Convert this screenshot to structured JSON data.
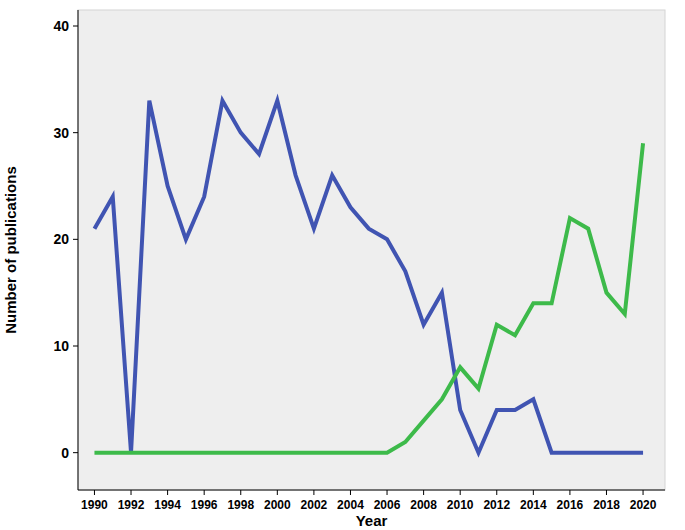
{
  "chart_data": {
    "type": "line",
    "x_label": "Year",
    "y_label": "Number of publications",
    "x": [
      1990,
      1991,
      1992,
      1993,
      1994,
      1995,
      1996,
      1997,
      1998,
      1999,
      2000,
      2001,
      2002,
      2003,
      2004,
      2005,
      2006,
      2007,
      2008,
      2009,
      2010,
      2011,
      2012,
      2013,
      2014,
      2015,
      2016,
      2017,
      2018,
      2019,
      2020
    ],
    "series": [
      {
        "color": "#4054b2",
        "values": [
          21,
          24,
          0,
          33,
          25,
          20,
          24,
          33,
          30,
          28,
          33,
          26,
          21,
          26,
          23,
          21,
          20,
          17,
          12,
          15,
          4,
          0,
          4,
          4,
          5,
          0,
          0,
          0,
          0,
          0,
          0
        ]
      },
      {
        "color": "#3dba4a",
        "values": [
          0,
          0,
          0,
          0,
          0,
          0,
          0,
          0,
          0,
          0,
          0,
          0,
          0,
          0,
          0,
          0,
          0,
          1,
          3,
          5,
          8,
          6,
          12,
          11,
          14,
          14,
          22,
          21,
          15,
          13,
          29
        ]
      }
    ],
    "xlim": [
      1989.1,
      2021.2
    ],
    "xticks": [
      1990,
      1992,
      1994,
      1996,
      1998,
      2000,
      2002,
      2004,
      2006,
      2008,
      2010,
      2012,
      2014,
      2016,
      2018,
      2020
    ],
    "ylim": [
      -3.5,
      41.5
    ],
    "yticks": [
      0,
      10,
      20,
      30,
      40
    ]
  }
}
